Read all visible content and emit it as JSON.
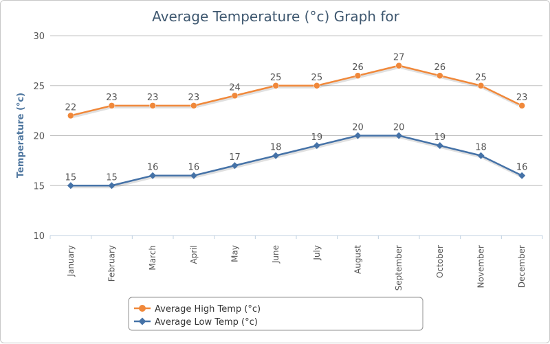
{
  "chart_data": {
    "type": "line",
    "title": "Average Temperature (°c) Graph for",
    "xlabel": "",
    "ylabel": "Temperature (°c)",
    "ylim": [
      10,
      30
    ],
    "yticks": [
      10,
      15,
      20,
      25,
      30
    ],
    "categories": [
      "January",
      "February",
      "March",
      "April",
      "May",
      "June",
      "July",
      "August",
      "September",
      "October",
      "November",
      "December"
    ],
    "grid": true,
    "legend_position": "bottom",
    "series": [
      {
        "name": "Average High Temp (°c)",
        "color": "#f0883a",
        "marker": "circle",
        "values": [
          22,
          23,
          23,
          23,
          24,
          25,
          25,
          26,
          27,
          26,
          25,
          23
        ]
      },
      {
        "name": "Average Low Temp (°c)",
        "color": "#4572a7",
        "marker": "diamond",
        "values": [
          15,
          15,
          16,
          16,
          17,
          18,
          19,
          20,
          20,
          19,
          18,
          16
        ]
      }
    ]
  }
}
